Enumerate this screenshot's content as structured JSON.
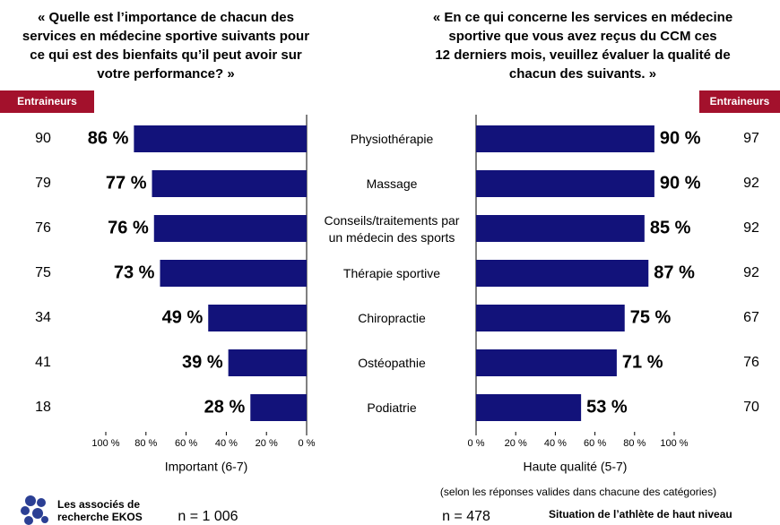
{
  "chart_data": [
    {
      "type": "bar",
      "orientation": "horizontal",
      "title": [
        "« Quelle est l’importance de chacun des",
        "services en médecine sportive suivants pour",
        "ce qui est des bienfaits qu’il peut avoir sur",
        "votre performance? »"
      ],
      "categories": [
        "Physiothérapie",
        "Massage",
        "Conseils/traitements par\nun médecin des sports",
        "Thérapie sportive",
        "Chiropractie",
        "Ostéopathie",
        "Podiatrie"
      ],
      "values": [
        86,
        77,
        76,
        73,
        49,
        39,
        28
      ],
      "value_labels": [
        "86 %",
        "77 %",
        "76 %",
        "73 %",
        "49 %",
        "39 %",
        "28 %"
      ],
      "color": "#12127a",
      "xlim": [
        100,
        0
      ],
      "xticks": [
        {
          "value": 100,
          "label": "100 %"
        },
        {
          "value": 80,
          "label": "80 %"
        },
        {
          "value": 60,
          "label": "60 %"
        },
        {
          "value": 40,
          "label": "40 %"
        },
        {
          "value": 20,
          "label": "20 %"
        },
        {
          "value": 0,
          "label": "0 %"
        }
      ],
      "xlabel": "Important (6-7)",
      "coaches": {
        "label": "Entraineurs",
        "values": [
          90,
          79,
          76,
          75,
          34,
          41,
          18
        ]
      },
      "n": "n = 1 006"
    },
    {
      "type": "bar",
      "orientation": "horizontal",
      "title": [
        "« En ce qui concerne les services en médecine",
        "sportive que vous avez reçus du CCM ces",
        "12 derniers mois, veuillez évaluer la qualité de",
        "chacun des suivants. »"
      ],
      "values": [
        90,
        90,
        85,
        87,
        75,
        71,
        53
      ],
      "value_labels": [
        "90 %",
        "90 %",
        "85 %",
        "87 %",
        "75 %",
        "71 %",
        "53 %"
      ],
      "color": "#12127a",
      "xlim": [
        0,
        100
      ],
      "xticks": [
        {
          "value": 0,
          "label": "0 %"
        },
        {
          "value": 20,
          "label": "20 %"
        },
        {
          "value": 40,
          "label": "40 %"
        },
        {
          "value": 60,
          "label": "60 %"
        },
        {
          "value": 80,
          "label": "80 %"
        },
        {
          "value": 100,
          "label": "100 %"
        }
      ],
      "xlabel": "Haute qualité (5-7)",
      "coaches": {
        "label": "Entraineurs",
        "values": [
          97,
          92,
          92,
          92,
          67,
          76,
          70
        ]
      },
      "n": "n = 478"
    }
  ],
  "footer": {
    "note": "(selon les réponses valides dans chacune des catégories)",
    "logo": "Les associés de\nrecherche EKOS",
    "source": "Situation de l’athlète de haut niveau"
  }
}
